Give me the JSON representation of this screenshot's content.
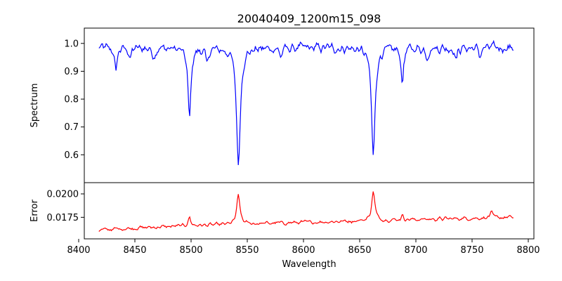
{
  "title": "20040409_1200m15_098",
  "chart_data": [
    {
      "type": "line",
      "panel": "top",
      "ylabel": "Spectrum",
      "xlim": [
        8405,
        8805
      ],
      "ylim": [
        0.5,
        1.055
      ],
      "yticks": [
        0.6,
        0.7,
        0.8,
        0.9,
        1.0
      ],
      "ytick_labels": [
        "0.6",
        "0.7",
        "0.8",
        "0.9",
        "1.0"
      ],
      "color": "#0000ff",
      "x_range": [
        8418,
        8787
      ],
      "baseline": 0.985,
      "noise": 0.022,
      "features": [
        {
          "center": 8433,
          "depth": 0.09,
          "width": 1.2
        },
        {
          "center": 8446,
          "depth": 0.04,
          "width": 1.2
        },
        {
          "center": 8467,
          "depth": 0.03,
          "width": 1.5
        },
        {
          "center": 8498.5,
          "depth": 0.25,
          "width": 1.6
        },
        {
          "center": 8514,
          "depth": 0.06,
          "width": 1.3
        },
        {
          "center": 8542.1,
          "depth": 0.42,
          "width": 2.0
        },
        {
          "center": 8580,
          "depth": 0.03,
          "width": 1.5
        },
        {
          "center": 8662.1,
          "depth": 0.39,
          "width": 1.9
        },
        {
          "center": 8688,
          "depth": 0.13,
          "width": 1.2
        },
        {
          "center": 8710,
          "depth": 0.03,
          "width": 1.5
        },
        {
          "center": 8736,
          "depth": 0.04,
          "width": 1.3
        },
        {
          "center": 8757,
          "depth": 0.03,
          "width": 1.3
        }
      ]
    },
    {
      "type": "line",
      "panel": "bottom",
      "xlabel": "Wavelength",
      "ylabel": "Error",
      "xlim": [
        8405,
        8805
      ],
      "ylim": [
        0.0152,
        0.0212
      ],
      "yticks": [
        0.0175,
        0.02
      ],
      "ytick_labels": [
        "0.0175",
        "0.0200"
      ],
      "xticks": [
        8400,
        8450,
        8500,
        8550,
        8600,
        8650,
        8700,
        8750,
        8800
      ],
      "xtick_labels": [
        "8400",
        "8450",
        "8500",
        "8550",
        "8600",
        "8650",
        "8700",
        "8750",
        "8800"
      ],
      "color": "#ff0000",
      "x_range": [
        8418,
        8787
      ],
      "base_start": 0.0161,
      "base_end": 0.0175,
      "noise": 0.00025,
      "features": [
        {
          "center": 8498.5,
          "height": 0.0009,
          "width": 1.4
        },
        {
          "center": 8542.1,
          "height": 0.0031,
          "width": 1.7
        },
        {
          "center": 8662.1,
          "height": 0.0031,
          "width": 1.7
        },
        {
          "center": 8688,
          "height": 0.0005,
          "width": 1.2
        },
        {
          "center": 8767,
          "height": 0.0006,
          "width": 1.2
        }
      ]
    }
  ]
}
